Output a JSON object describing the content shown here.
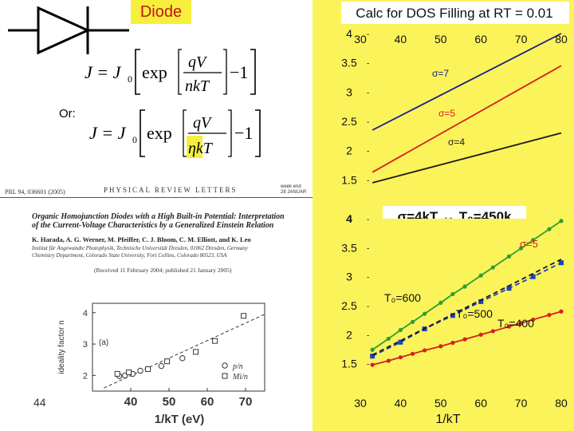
{
  "diode_label": "Diode",
  "or_label": "Or:",
  "equation1": {
    "lhs": "J = J",
    "sub0": "0",
    "exp": "exp",
    "num": "qV",
    "den": "nkT",
    "minus_one": "−1"
  },
  "equation2": {
    "lhs": "J = J",
    "sub0": "0",
    "exp": "exp",
    "num": "qV",
    "den": "ηkT",
    "minus_one": "−1"
  },
  "slide_number": "44",
  "paper": {
    "header_left": "PRL 94, 036601 (2005)",
    "header_center": "PHYSICAL REVIEW LETTERS",
    "header_right_1": "week end",
    "header_right_2": "28 JANUAR",
    "title_line1": "Organic Homojunction Diodes with a High Built-in Potential: Interpretation",
    "title_line2": "of the Current-Voltage Characteristics by a Generalized Einstein Relation",
    "authors": "K. Harada, A. G. Werner, M. Pfeiffer, C. J. Bloom, C. M. Elliott, and K. Leo",
    "affil1": "Institut für Angewandte Photophysik, Technische Universität Dresden, 01062 Dresden, Germany",
    "affil2": "Chemistry Department, Colorado State University, Fort Collins, Colorado 80523, USA",
    "received": "(Received 11 February 2004; published 21 January 2005)"
  },
  "top_chart_title": "Calc for DOS Filling at RT = 0.01",
  "bottom_chart_label": "σ=4kT ↔ T₀=450k",
  "bottom_xlabel": "1/kT",
  "chart_data": [
    {
      "type": "line",
      "name": "ideality-factor-paper-plot",
      "xlabel": "1/kT (eV)",
      "ylabel": "ideality factor n",
      "xlim": [
        30,
        75
      ],
      "ylim": [
        1.5,
        4.3
      ],
      "x_ticks": [
        40,
        50,
        60,
        70
      ],
      "y_ticks": [
        2,
        3,
        4
      ],
      "panel_label": "(a)",
      "series": [
        {
          "name": "p/n",
          "marker": "circle",
          "x": [
            37,
            38.5,
            40.5,
            42.5,
            48,
            53.5
          ],
          "y": [
            1.98,
            2.0,
            2.05,
            2.15,
            2.3,
            2.55
          ]
        },
        {
          "name": "Mi/n",
          "marker": "square",
          "x": [
            36.5,
            39.5,
            44.5,
            49.5,
            57,
            62,
            69.5
          ],
          "y": [
            2.05,
            2.1,
            2.2,
            2.45,
            2.75,
            3.1,
            3.9
          ]
        }
      ],
      "fit_line": {
        "x": [
          33,
          75
        ],
        "y": [
          1.6,
          3.95
        ]
      }
    },
    {
      "type": "line",
      "name": "dos-filling-top",
      "title": "Calc for DOS Filling at RT = 0.01",
      "xlim": [
        30,
        80
      ],
      "ylim": [
        1,
        4
      ],
      "x_ticks": [
        30,
        40,
        50,
        60,
        70,
        80
      ],
      "y_ticks": [
        4,
        3.5,
        3,
        2.5,
        2,
        1.5
      ],
      "series": [
        {
          "name": "σ=7",
          "color": "#1a1a8c",
          "x": [
            33,
            80
          ],
          "y": [
            2.35,
            4.0
          ]
        },
        {
          "name": "σ=5",
          "color": "#d42020",
          "x": [
            33,
            80
          ],
          "y": [
            1.63,
            3.45
          ]
        },
        {
          "name": "σ=4",
          "color": "#1a1a1a",
          "x": [
            33,
            80
          ],
          "y": [
            1.45,
            2.3
          ]
        }
      ]
    },
    {
      "type": "line",
      "name": "dos-filling-bottom",
      "xlabel": "1/kT",
      "xlim": [
        30,
        80
      ],
      "ylim": [
        1,
        4
      ],
      "x_ticks": [
        30,
        40,
        50,
        60,
        70,
        80
      ],
      "y_ticks": [
        4,
        3.5,
        3,
        2.5,
        2,
        1.5
      ],
      "annotations": [
        "T₀=600",
        "T₀=500",
        "T₀=400",
        "σ=5"
      ],
      "series": [
        {
          "name": "T₀=600",
          "color": "#2e9e2e",
          "marker": "circle",
          "x": [
            33,
            37,
            40,
            43,
            46,
            50,
            53,
            56,
            60,
            63,
            67,
            70,
            73,
            77,
            80
          ],
          "y": [
            1.74,
            1.93,
            2.08,
            2.22,
            2.36,
            2.55,
            2.7,
            2.83,
            3.02,
            3.16,
            3.35,
            3.49,
            3.63,
            3.82,
            3.96
          ]
        },
        {
          "name": "T₀=500",
          "color": "#1a3fc8",
          "marker": "square",
          "dashed": true,
          "x": [
            33,
            40,
            46,
            53,
            60,
            67,
            73,
            80
          ],
          "y": [
            1.63,
            1.87,
            2.1,
            2.33,
            2.57,
            2.8,
            3.0,
            3.24
          ]
        },
        {
          "name": "T₀=400",
          "color": "#d42020",
          "marker": "circle",
          "x": [
            33,
            37,
            40,
            43,
            46,
            50,
            53,
            56,
            60,
            63,
            67,
            70,
            73,
            77,
            80
          ],
          "y": [
            1.48,
            1.55,
            1.61,
            1.67,
            1.73,
            1.8,
            1.86,
            1.92,
            2.0,
            2.06,
            2.14,
            2.2,
            2.26,
            2.34,
            2.4
          ]
        },
        {
          "name": "σ=5",
          "color": "#1a1a1a",
          "dashed": true,
          "x": [
            33,
            80
          ],
          "y": [
            1.65,
            3.3
          ]
        }
      ]
    }
  ]
}
